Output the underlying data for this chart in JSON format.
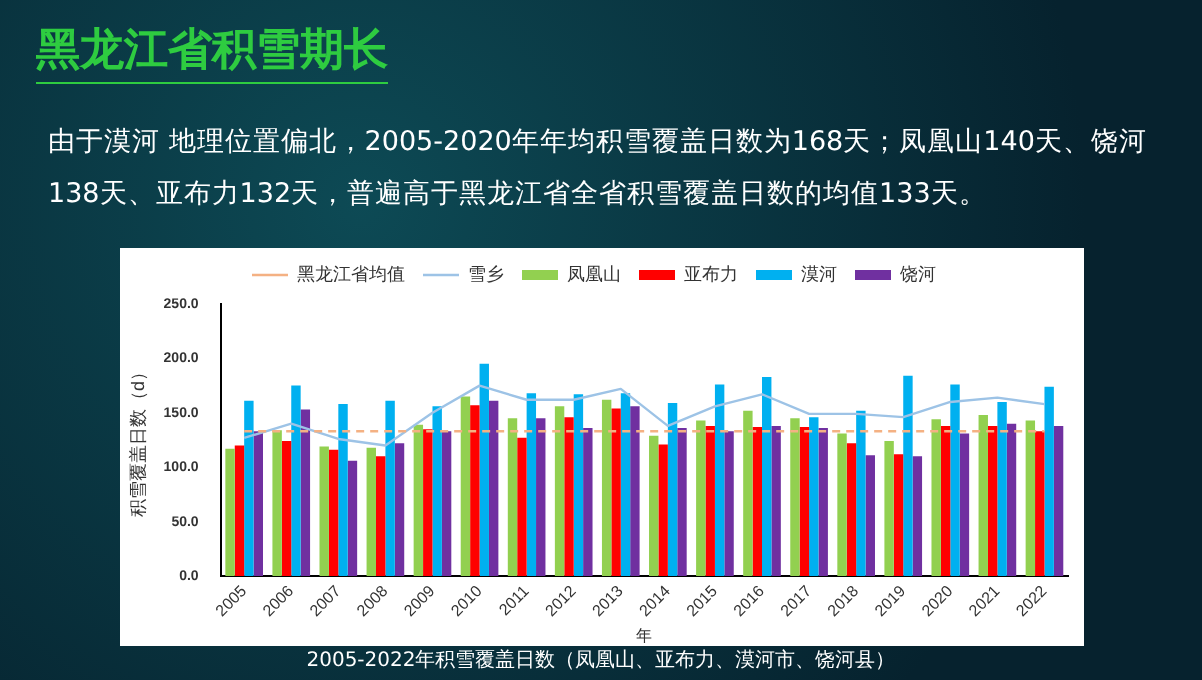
{
  "chart_data": {
    "type": "bar",
    "title": "黑龙江省积雪期长",
    "subtitle": "由于漠河 地理位置偏北，2005-2020年年均积雪覆盖日数为168天；凤凰山140天、饶河138天、亚布力132天，普遍高于黑龙江省全省积雪覆盖日数的均值133天。",
    "xlabel": "年",
    "ylabel": "积雪覆盖日数（d）",
    "annotations": [
      "2005-2022年积雪覆盖日数（凤凰山、亚布力、漠河市、饶河县）"
    ],
    "categories": [
      "2005",
      "2006",
      "2007",
      "2008",
      "2009",
      "2010",
      "2011",
      "2012",
      "2013",
      "2014",
      "2015",
      "2016",
      "2017",
      "2018",
      "2019",
      "2020",
      "2021",
      "2022"
    ],
    "series": [
      {
        "name": "凤凰山",
        "color": "#92d050",
        "values": [
          117,
          134,
          119,
          118,
          139,
          165,
          145,
          156,
          162,
          129,
          143,
          152,
          145,
          131,
          124,
          144,
          148,
          143
        ]
      },
      {
        "name": "亚布力",
        "color": "#ff0000",
        "values": [
          120,
          124,
          116,
          110,
          135,
          157,
          127,
          146,
          154,
          121,
          138,
          137,
          137,
          122,
          112,
          138,
          138,
          133
        ]
      },
      {
        "name": "漠河",
        "color": "#00b0f0",
        "values": [
          161,
          175,
          158,
          161,
          156,
          195,
          168,
          167,
          168,
          159,
          176,
          183,
          146,
          152,
          184,
          176,
          160,
          174
        ]
      },
      {
        "name": "饶河",
        "color": "#7030a0",
        "values": [
          133,
          153,
          106,
          122,
          133,
          161,
          145,
          136,
          156,
          136,
          133,
          138,
          136,
          111,
          110,
          131,
          140,
          138
        ]
      },
      {
        "name": "黑龙江省均值",
        "type": "line",
        "line_style": "dashed",
        "color": "#f4b183",
        "values": [
          133,
          133,
          133,
          133,
          133,
          133,
          133,
          133,
          133,
          133,
          133,
          133,
          133,
          133,
          133,
          133,
          133,
          133
        ]
      },
      {
        "name": "雪乡",
        "type": "line",
        "line_style": "solid",
        "color": "#9dc3e6",
        "values": [
          127,
          140,
          126,
          120,
          150,
          175,
          162,
          162,
          172,
          138,
          156,
          167,
          149,
          149,
          146,
          160,
          164,
          158
        ]
      }
    ],
    "ylim": [
      0,
      250
    ],
    "yticks": [
      {
        "value": 0,
        "label": "0.0"
      },
      {
        "value": 50,
        "label": "50.0"
      },
      {
        "value": 100,
        "label": "100.0"
      },
      {
        "value": 150,
        "label": "150.0"
      },
      {
        "value": 200,
        "label": "200.0"
      },
      {
        "value": 250,
        "label": "250.0"
      }
    ],
    "grid": false,
    "legend": "top",
    "marker": "none"
  }
}
